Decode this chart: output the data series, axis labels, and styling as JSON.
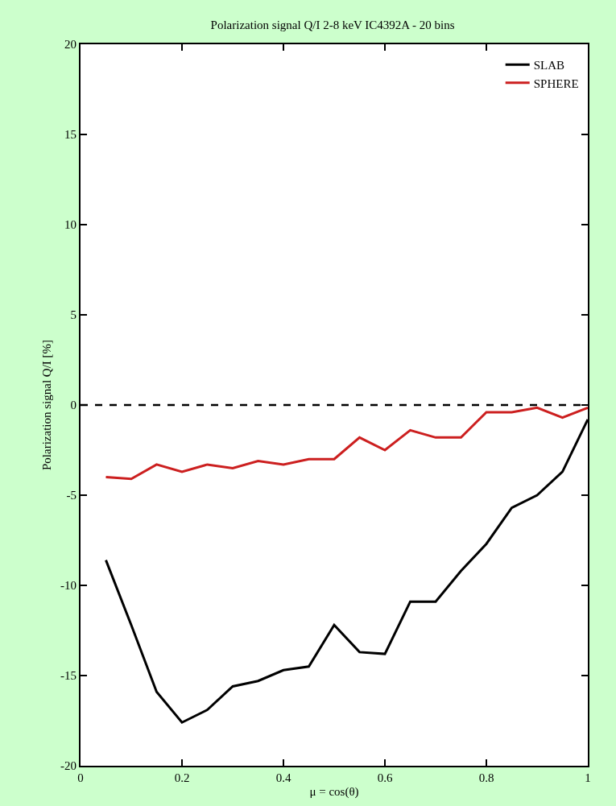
{
  "chart_data": {
    "type": "line",
    "title": "Polarization signal Q/I 2-8 keV IC4392A - 20 bins",
    "xlabel": "μ = cos(θ)",
    "ylabel": "Polarization signal Q/I [%]",
    "x": [
      0.05,
      0.1,
      0.15,
      0.2,
      0.25,
      0.3,
      0.35,
      0.4,
      0.45,
      0.5,
      0.55,
      0.6,
      0.65,
      0.7,
      0.75,
      0.8,
      0.85,
      0.9,
      0.95,
      1.0
    ],
    "series": [
      {
        "name": "SLAB",
        "color": "#000000",
        "values": [
          -8.6,
          -12.2,
          -15.9,
          -17.6,
          -16.9,
          -15.6,
          -15.3,
          -14.7,
          -14.5,
          -12.2,
          -13.7,
          -13.8,
          -10.9,
          -10.9,
          -9.2,
          -7.7,
          -5.7,
          -5.0,
          -3.7,
          -0.8
        ]
      },
      {
        "name": "SPHERE",
        "color": "#cc1f1f",
        "values": [
          -4.0,
          -4.1,
          -3.3,
          -3.7,
          -3.3,
          -3.5,
          -3.1,
          -3.3,
          -3.0,
          -3.0,
          -1.8,
          -2.5,
          -1.4,
          -1.8,
          -1.8,
          -0.4,
          -0.4,
          -0.15,
          -0.7,
          -0.15
        ]
      }
    ],
    "ref_lines": [
      {
        "axis": "y",
        "value": 0,
        "color": "#000000",
        "line_style": "dashed"
      }
    ],
    "xlim": [
      0,
      1
    ],
    "xticks": [
      0,
      0.2,
      0.4,
      0.6,
      0.8,
      1
    ],
    "ylim": [
      -20,
      20
    ],
    "yticks": [
      -20,
      -15,
      -10,
      -5,
      0,
      5,
      10,
      15,
      20
    ],
    "legend": "top right",
    "line_style": "solid"
  }
}
